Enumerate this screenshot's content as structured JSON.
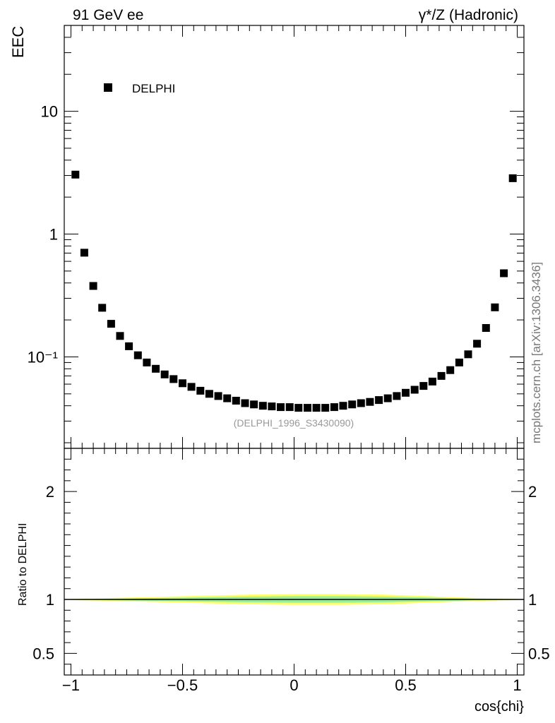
{
  "header": {
    "left": "91 GeV ee",
    "right": "γ*/Z (Hadronic)"
  },
  "watermark": "mcplots.cern.ch [arXiv:1306.3436]",
  "analysis_ref": "(DELPHI_1996_S3430090)",
  "chart_data": [
    {
      "type": "scatter",
      "panel": "main",
      "ylabel": "EEC",
      "yscale": "log",
      "ylim": [
        0.018,
        50
      ],
      "xlim": [
        -1.03,
        1.03
      ],
      "y_tick_labels": [
        "10",
        "1",
        "10⁻¹"
      ],
      "y_tick_values": [
        10,
        1,
        0.1
      ],
      "legend": {
        "placement": "top-left",
        "entries": [
          "DELPHI"
        ]
      },
      "series": [
        {
          "name": "DELPHI",
          "marker": "square",
          "color": "#000000",
          "x": [
            -0.98,
            -0.94,
            -0.9,
            -0.86,
            -0.82,
            -0.78,
            -0.74,
            -0.7,
            -0.66,
            -0.62,
            -0.58,
            -0.54,
            -0.5,
            -0.46,
            -0.42,
            -0.38,
            -0.34,
            -0.3,
            -0.26,
            -0.22,
            -0.18,
            -0.14,
            -0.1,
            -0.06,
            -0.02,
            0.02,
            0.06,
            0.1,
            0.14,
            0.18,
            0.22,
            0.26,
            0.3,
            0.34,
            0.38,
            0.42,
            0.46,
            0.5,
            0.54,
            0.58,
            0.62,
            0.66,
            0.7,
            0.74,
            0.78,
            0.82,
            0.86,
            0.9,
            0.94,
            0.98
          ],
          "y": [
            3.05,
            0.705,
            0.378,
            0.251,
            0.186,
            0.148,
            0.122,
            0.103,
            0.09,
            0.08,
            0.072,
            0.066,
            0.061,
            0.057,
            0.053,
            0.05,
            0.048,
            0.046,
            0.044,
            0.042,
            0.041,
            0.04,
            0.0395,
            0.039,
            0.039,
            0.0385,
            0.0385,
            0.0385,
            0.0385,
            0.039,
            0.04,
            0.041,
            0.042,
            0.043,
            0.0445,
            0.046,
            0.048,
            0.051,
            0.054,
            0.058,
            0.063,
            0.07,
            0.078,
            0.09,
            0.105,
            0.128,
            0.172,
            0.253,
            0.48,
            2.85
          ]
        }
      ]
    },
    {
      "type": "area",
      "panel": "ratio",
      "ylabel": "Ratio to DELPHI",
      "xlabel": "cos{chi}",
      "xlim": [
        -1.03,
        1.03
      ],
      "ylim": [
        0.3,
        2.4
      ],
      "y_tick_labels": [
        "2",
        "1",
        "0.5"
      ],
      "y_tick_values": [
        2,
        1,
        0.5
      ],
      "x_tick_labels": [
        "−1",
        "−0.5",
        "0",
        "0.5",
        "1"
      ],
      "x_tick_values": [
        -1,
        -0.5,
        0,
        0.5,
        1
      ],
      "reference_line": 1,
      "band_colors": {
        "outer": "#ffff66",
        "inner": "#99ee99",
        "line": "#000000"
      },
      "bands": {
        "x": [
          -1.0,
          -0.8,
          -0.6,
          -0.4,
          -0.2,
          0.0,
          0.2,
          0.4,
          0.6,
          0.8,
          1.0
        ],
        "outer_half_width": [
          0.005,
          0.015,
          0.025,
          0.035,
          0.045,
          0.05,
          0.05,
          0.045,
          0.03,
          0.015,
          0.005
        ],
        "inner_half_width": [
          0.003,
          0.008,
          0.014,
          0.02,
          0.026,
          0.03,
          0.03,
          0.026,
          0.018,
          0.008,
          0.003
        ]
      }
    }
  ]
}
